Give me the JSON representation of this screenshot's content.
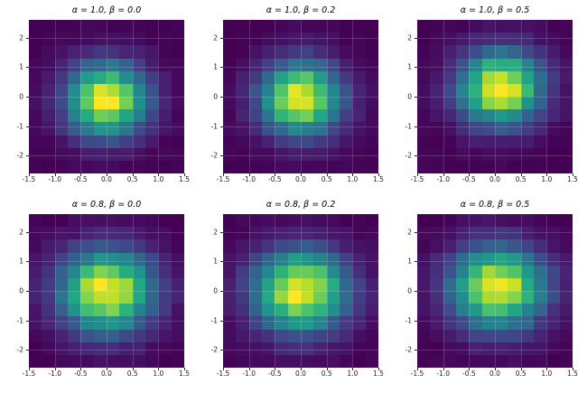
{
  "figure": {
    "background": "#ffffff",
    "text_color": "#222222",
    "x_range": [
      -1.5,
      1.5
    ],
    "y_range": [
      -2.6,
      2.6
    ],
    "x_ticks": [
      "-1.5",
      "-1.0",
      "-0.5",
      "0.0",
      "0.5",
      "1.0",
      "1.5"
    ],
    "y_ticks": [
      "2",
      "1",
      "0",
      "-1",
      "-2"
    ],
    "grid_bins": [
      12,
      12
    ],
    "grid_lines": true,
    "colormap": {
      "name": "viridis",
      "stops": [
        [
          0.0,
          "#440154"
        ],
        [
          0.1,
          "#482475"
        ],
        [
          0.2,
          "#414487"
        ],
        [
          0.3,
          "#355f8d"
        ],
        [
          0.4,
          "#2a788e"
        ],
        [
          0.5,
          "#21918c"
        ],
        [
          0.6,
          "#22a884"
        ],
        [
          0.7,
          "#44bf70"
        ],
        [
          0.8,
          "#7ad151"
        ],
        [
          0.9,
          "#bddf26"
        ],
        [
          1.0,
          "#fde725"
        ]
      ]
    }
  },
  "chart_data": [
    {
      "type": "heatmap",
      "title": "α = 1.0, β = 0.0",
      "alpha": 1.0,
      "beta": 0.0,
      "center": [
        0.0,
        -0.1
      ],
      "sigma": [
        0.53,
        0.85
      ],
      "peak": 1.0,
      "noise": 0.12,
      "seed": 11
    },
    {
      "type": "heatmap",
      "title": "α = 1.0, β = 0.2",
      "alpha": 1.0,
      "beta": 0.2,
      "center": [
        0.0,
        -0.05
      ],
      "sigma": [
        0.53,
        0.85
      ],
      "peak": 1.0,
      "noise": 0.12,
      "seed": 22
    },
    {
      "type": "heatmap",
      "title": "α = 1.0, β = 0.5",
      "alpha": 1.0,
      "beta": 0.5,
      "center": [
        0.1,
        0.3
      ],
      "sigma": [
        0.55,
        0.85
      ],
      "peak": 1.0,
      "noise": 0.12,
      "seed": 33
    },
    {
      "type": "heatmap",
      "title": "α = 0.8, β = 0.0",
      "alpha": 0.8,
      "beta": 0.0,
      "center": [
        0.0,
        0.0
      ],
      "sigma": [
        0.62,
        0.95
      ],
      "peak": 1.0,
      "noise": 0.12,
      "seed": 44
    },
    {
      "type": "heatmap",
      "title": "α = 0.8, β = 0.2",
      "alpha": 0.8,
      "beta": 0.2,
      "center": [
        0.0,
        0.0
      ],
      "sigma": [
        0.62,
        0.95
      ],
      "peak": 1.0,
      "noise": 0.12,
      "seed": 55
    },
    {
      "type": "heatmap",
      "title": "α = 0.8, β = 0.5",
      "alpha": 0.8,
      "beta": 0.5,
      "center": [
        0.05,
        0.1
      ],
      "sigma": [
        0.62,
        0.95
      ],
      "peak": 1.0,
      "noise": 0.12,
      "seed": 66
    }
  ]
}
